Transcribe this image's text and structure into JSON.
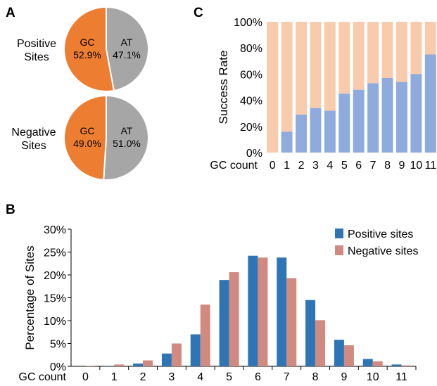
{
  "panels": {
    "A": {
      "letter": "A",
      "pies": [
        {
          "label_line1": "Positive",
          "label_line2": "Sites",
          "gc_label": "GC",
          "gc_value": "52.9%",
          "at_label": "AT",
          "at_value": "47.1%"
        },
        {
          "label_line1": "Negative",
          "label_line2": "Sites",
          "gc_label": "GC",
          "gc_value": "49.0%",
          "at_label": "AT",
          "at_value": "51.0%"
        }
      ]
    },
    "B": {
      "letter": "B"
    },
    "C": {
      "letter": "C"
    }
  },
  "colors": {
    "gc": "#ed7d31",
    "at": "#a6a6a6",
    "success": "#8faadc",
    "fail": "#f8cbad",
    "positive": "#2e75b6",
    "negative": "#d08a7f"
  },
  "chart_data": [
    {
      "panel": "A",
      "type": "pie",
      "title": "Positive Sites",
      "categories": [
        "GC",
        "AT"
      ],
      "values": [
        52.9,
        47.1
      ]
    },
    {
      "panel": "A",
      "type": "pie",
      "title": "Negative Sites",
      "categories": [
        "GC",
        "AT"
      ],
      "values": [
        49.0,
        51.0
      ]
    },
    {
      "panel": "C",
      "type": "bar",
      "stacked": true,
      "xlabel": "GC count",
      "ylabel": "Success Rate",
      "ylim": [
        0,
        100
      ],
      "yticks": [
        "0%",
        "20%",
        "40%",
        "60%",
        "80%",
        "100%"
      ],
      "categories": [
        "0",
        "1",
        "2",
        "3",
        "4",
        "5",
        "6",
        "7",
        "8",
        "9",
        "10",
        "11"
      ],
      "values": [
        0,
        16,
        29,
        34,
        32,
        45,
        48,
        53,
        57,
        54,
        60,
        75
      ],
      "grid": false
    },
    {
      "panel": "B",
      "type": "bar",
      "xlabel": "GC count",
      "ylabel": "Percentage of Sites",
      "ylim": [
        0,
        30
      ],
      "yticks": [
        "0%",
        "5%",
        "10%",
        "15%",
        "20%",
        "25%",
        "30%"
      ],
      "categories": [
        "0",
        "1",
        "2",
        "3",
        "4",
        "5",
        "6",
        "7",
        "8",
        "9",
        "10",
        "11"
      ],
      "series": [
        {
          "name": "Positive sites",
          "values": [
            0.0,
            0.1,
            0.6,
            2.8,
            7.0,
            18.9,
            24.2,
            23.8,
            14.5,
            5.8,
            1.6,
            0.4
          ]
        },
        {
          "name": "Negative sites",
          "values": [
            0.1,
            0.4,
            1.3,
            5.0,
            13.5,
            20.6,
            23.8,
            19.3,
            10.1,
            4.6,
            1.1,
            0.2
          ]
        }
      ],
      "legend": "top-right",
      "grid": false
    }
  ]
}
